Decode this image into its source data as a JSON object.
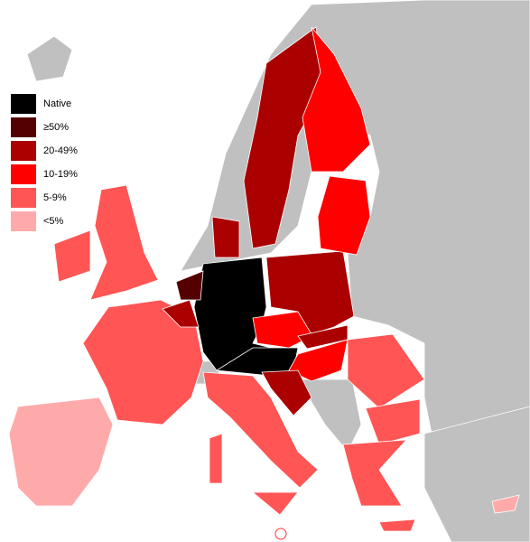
{
  "legend": {
    "items": [
      {
        "label": "Native",
        "color": "#000000"
      },
      {
        "label": "≥50%",
        "color": "#550000"
      },
      {
        "label": "20-49%",
        "color": "#aa0000"
      },
      {
        "label": "10-19%",
        "color": "#ff0000"
      },
      {
        "label": "5-9%",
        "color": "#ff5555"
      },
      {
        "label": "<5%",
        "color": "#ffaaaa"
      }
    ]
  }
}
